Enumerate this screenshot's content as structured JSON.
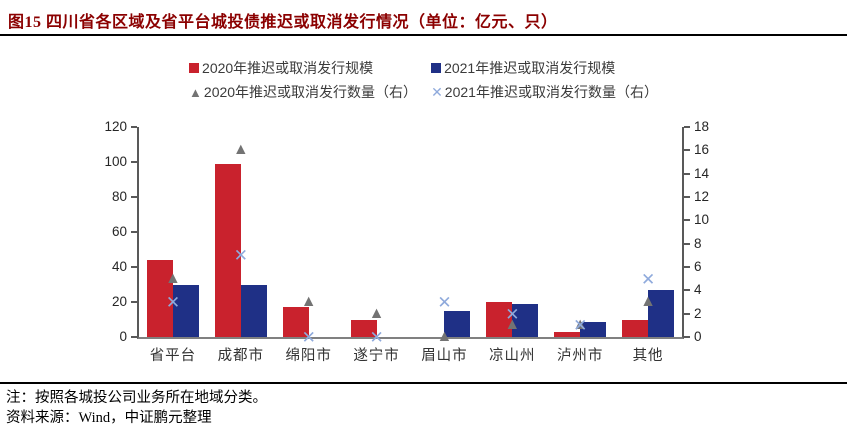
{
  "title": "图15 四川省各区域及省平台城投债推迟或取消发行情况（单位：亿元、只）",
  "colors": {
    "bar_2020": "#C9222D",
    "bar_2021": "#1F3086",
    "marker_2020": "#737373",
    "marker_2021": "#8FAADC",
    "title": "#8B0000"
  },
  "legend": {
    "items": [
      {
        "label": "2020年推迟或取消发行规模",
        "marker": "square",
        "color": "#C9222D"
      },
      {
        "label": "2021年推迟或取消发行规模",
        "marker": "square",
        "color": "#1F3086"
      },
      {
        "label": "2020年推迟或取消发行数量（右）",
        "marker": "triangle",
        "color": "#737373"
      },
      {
        "label": "2021年推迟或取消发行数量（右）",
        "marker": "x",
        "color": "#8FAADC"
      }
    ]
  },
  "chart_data": {
    "type": "bar",
    "subtype": "grouped bars (left axis) + scatter markers (right axis)",
    "categories": [
      "省平台",
      "成都市",
      "绵阳市",
      "遂宁市",
      "眉山市",
      "凉山州",
      "泸州市",
      "其他"
    ],
    "series": [
      {
        "name": "2020年推迟或取消发行规模",
        "render": "bar",
        "axis": "left",
        "unit": "亿元",
        "color": "#C9222D",
        "values": [
          44,
          99,
          17,
          10,
          0,
          20,
          3,
          10
        ]
      },
      {
        "name": "2021年推迟或取消发行规模",
        "render": "bar",
        "axis": "left",
        "unit": "亿元",
        "color": "#1F3086",
        "values": [
          30,
          30,
          0,
          0,
          15,
          19,
          8.5,
          27
        ]
      },
      {
        "name": "2020年推迟或取消发行数量（右）",
        "render": "scatter",
        "marker": "triangle",
        "axis": "right",
        "unit": "只",
        "color": "#737373",
        "values": [
          5,
          16,
          3,
          2,
          0,
          1,
          1,
          3
        ]
      },
      {
        "name": "2021年推迟或取消发行数量（右）",
        "render": "scatter",
        "marker": "x",
        "axis": "right",
        "unit": "只",
        "color": "#8FAADC",
        "values": [
          3,
          7,
          0,
          0,
          3,
          2,
          1,
          5
        ]
      }
    ],
    "left_axis": {
      "min": 0,
      "max": 120,
      "step": 20,
      "ticks": [
        0,
        20,
        40,
        60,
        80,
        100,
        120
      ]
    },
    "right_axis": {
      "min": 0,
      "max": 18,
      "step": 2,
      "ticks": [
        0,
        2,
        4,
        6,
        8,
        10,
        12,
        14,
        16,
        18
      ]
    },
    "grid": false,
    "legend_position": "top",
    "title": "图15 四川省各区域及省平台城投债推迟或取消发行情况（单位：亿元、只）"
  },
  "notes": {
    "note": "注：按照各城投公司业务所在地域分类。",
    "source": "资料来源：Wind，中证鹏元整理"
  }
}
